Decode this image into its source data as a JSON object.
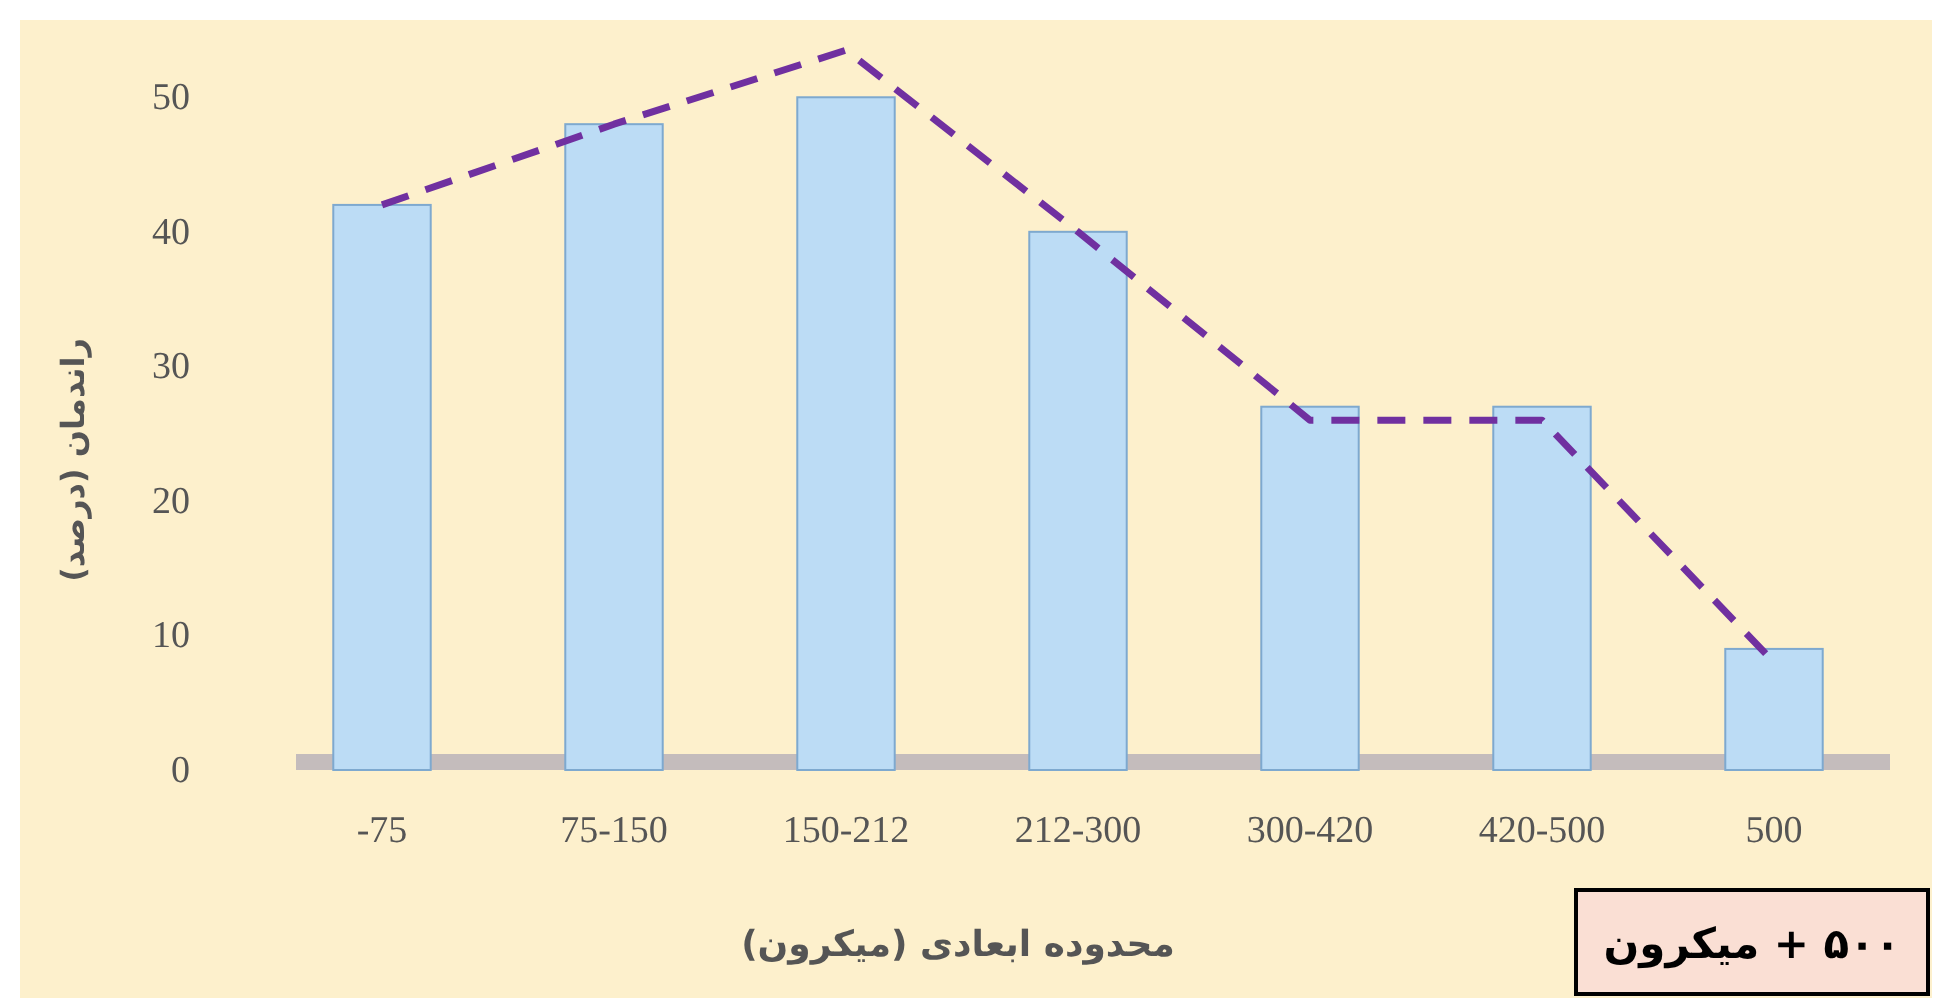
{
  "chart_data": {
    "type": "bar",
    "xlabel": "محدوده ابعادی (میکرون)",
    "ylabel": "راندمان (درصد)",
    "categories": [
      "-75",
      "75-150",
      "150-212",
      "212-300",
      "300-420",
      "420-500",
      "500"
    ],
    "ylim": [
      0,
      55
    ],
    "yticks": [
      0,
      10,
      20,
      30,
      40,
      50
    ],
    "series": [
      {
        "color": "#bcdcf5",
        "values": [
          42,
          48,
          50,
          40,
          27,
          27,
          9
        ]
      },
      {
        "type": "line",
        "color": "#7030a0",
        "line_style": "dashed",
        "values": [
          42,
          48,
          53.5,
          40,
          26,
          26,
          8
        ]
      }
    ],
    "annotations": [
      "۵۰۰ + میکرون"
    ]
  }
}
